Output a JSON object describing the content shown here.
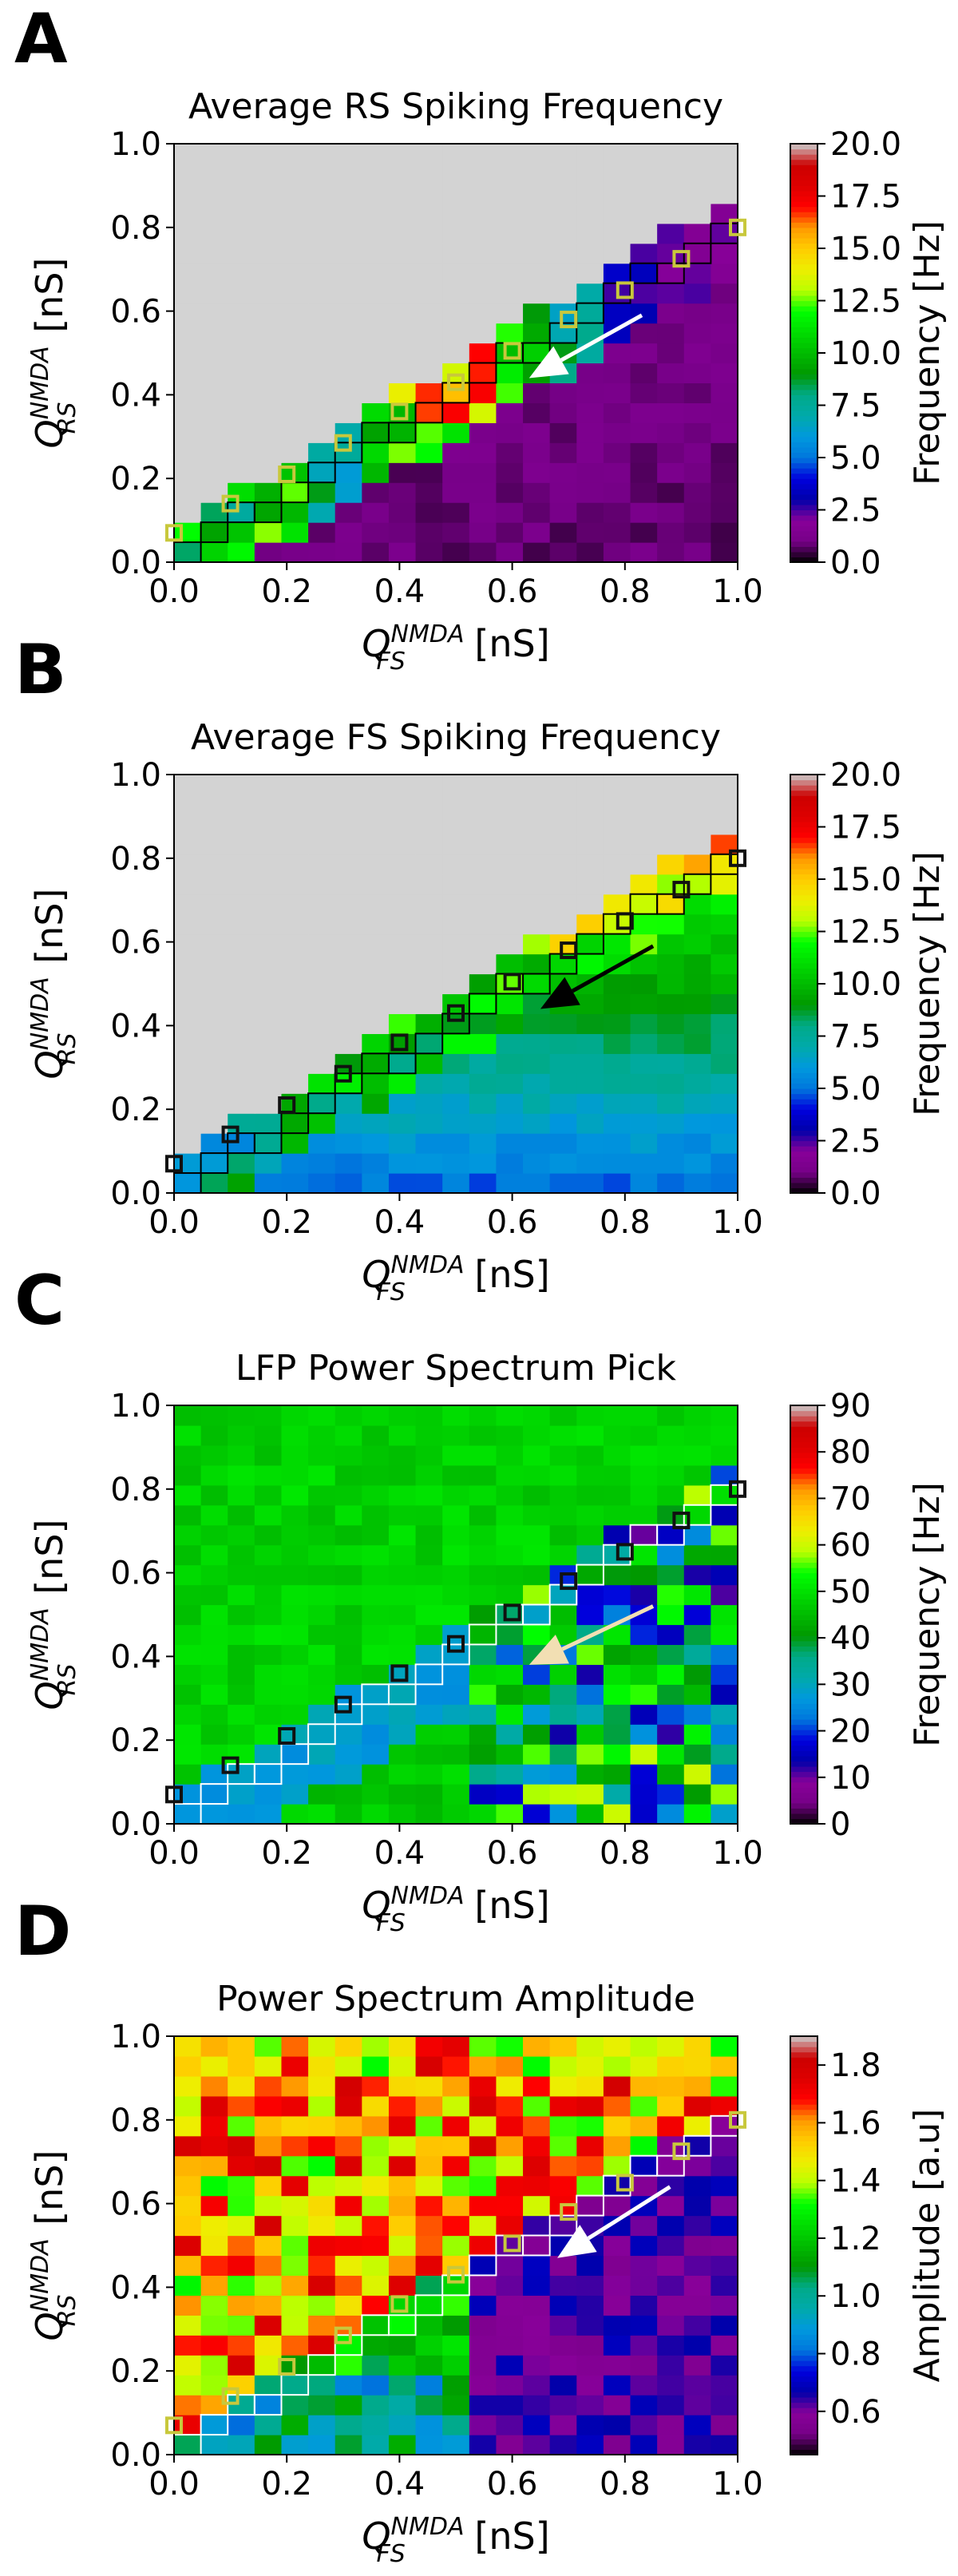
{
  "figure": {
    "type": "multi-panel heatmap figure",
    "x_axis": {
      "base": "Q",
      "superscript": "NMDA",
      "subscript": "FS",
      "unit": "[nS]"
    },
    "y_axis": {
      "base": "Q",
      "superscript": "NMDA",
      "subscript": "RS",
      "unit": "[nS]"
    },
    "ticks": [
      "0.0",
      "0.2",
      "0.4",
      "0.6",
      "0.8",
      "1.0"
    ]
  },
  "chart_data": [
    {
      "panel_label": "A",
      "type": "heatmap",
      "title": "Average RS Spiking Frequency",
      "xlabel": "Q_FS^NMDA [nS]",
      "ylabel": "Q_RS^NMDA [nS]",
      "xlim": [
        0,
        1
      ],
      "ylim": [
        0,
        1
      ],
      "grid_size": 21,
      "masked_region": "upper-left triangle (no data, gray)",
      "colorbar": {
        "label": "Frequency [Hz]",
        "min": 0,
        "max": 20,
        "ticks": [
          "0.0",
          "2.5",
          "5.0",
          "7.5",
          "10.0",
          "12.5",
          "15.0",
          "17.5",
          "20.0"
        ],
        "cmap": "nipy_spectral"
      },
      "heat_model": {
        "kind": "bg_edge",
        "bg_base": 0.5,
        "bg_gradient": 0.5,
        "edge_values": [
          12,
          13,
          9,
          15,
          18,
          13,
          9,
          4,
          2.5
        ],
        "edge_width": 0.12
      },
      "marker_color": "#c8c83c",
      "markers": [
        [
          0,
          0.07
        ],
        [
          0.1,
          0.14
        ],
        [
          0.2,
          0.21
        ],
        [
          0.3,
          0.285
        ],
        [
          0.4,
          0.36
        ],
        [
          0.5,
          0.43
        ],
        [
          0.6,
          0.505
        ],
        [
          0.7,
          0.58
        ],
        [
          0.8,
          0.65
        ],
        [
          0.9,
          0.725
        ],
        [
          1.0,
          0.8
        ]
      ],
      "arrow": {
        "color": "#ffffff",
        "from": [
          0.83,
          0.59
        ],
        "to": [
          0.63,
          0.44
        ]
      }
    },
    {
      "panel_label": "B",
      "type": "heatmap",
      "title": "Average FS Spiking Frequency",
      "xlabel": "Q_FS^NMDA [nS]",
      "ylabel": "Q_RS^NMDA [nS]",
      "xlim": [
        0,
        1
      ],
      "ylim": [
        0,
        1
      ],
      "grid_size": 21,
      "masked_region": "upper-left triangle (no data, gray)",
      "colorbar": {
        "label": "Frequency [Hz]",
        "min": 0,
        "max": 20,
        "ticks": [
          "0.0",
          "2.5",
          "5.0",
          "7.5",
          "10.0",
          "12.5",
          "15.0",
          "17.5",
          "20.0"
        ],
        "cmap": "nipy_spectral"
      },
      "heat_model": {
        "kind": "linear",
        "base": 4.5,
        "by": 9,
        "edge_boost": 5
      },
      "marker_color": "#111111",
      "markers": [
        [
          0,
          0.07
        ],
        [
          0.1,
          0.14
        ],
        [
          0.2,
          0.21
        ],
        [
          0.3,
          0.285
        ],
        [
          0.4,
          0.36
        ],
        [
          0.5,
          0.43
        ],
        [
          0.6,
          0.505
        ],
        [
          0.7,
          0.58
        ],
        [
          0.8,
          0.65
        ],
        [
          0.9,
          0.725
        ],
        [
          1.0,
          0.8
        ]
      ],
      "arrow": {
        "color": "#000000",
        "from": [
          0.85,
          0.59
        ],
        "to": [
          0.65,
          0.44
        ]
      }
    },
    {
      "panel_label": "C",
      "type": "heatmap",
      "title": "LFP Power Spectrum Pick",
      "xlabel": "Q_FS^NMDA [nS]",
      "ylabel": "Q_RS^NMDA [nS]",
      "xlim": [
        0,
        1
      ],
      "ylim": [
        0,
        1
      ],
      "grid_size": 21,
      "colorbar": {
        "label": "Frequency [Hz]",
        "min": 0,
        "max": 90,
        "ticks": [
          "0",
          "10",
          "20",
          "30",
          "40",
          "50",
          "60",
          "70",
          "80",
          "90"
        ],
        "cmap": "nipy_spectral"
      },
      "heat_model": {
        "kind": "lfp",
        "upper_value": 45,
        "below_value": 25,
        "green_region_value": 44,
        "right_region_value": 35,
        "right_region_spread": 25
      },
      "marker_color": "#111111",
      "markers": [
        [
          0,
          0.07
        ],
        [
          0.1,
          0.14
        ],
        [
          0.2,
          0.21
        ],
        [
          0.3,
          0.285
        ],
        [
          0.4,
          0.36
        ],
        [
          0.5,
          0.43
        ],
        [
          0.6,
          0.505
        ],
        [
          0.7,
          0.58
        ],
        [
          0.8,
          0.65
        ],
        [
          0.9,
          0.725
        ],
        [
          1.0,
          0.8
        ]
      ],
      "arrow": {
        "color": "#f2dfb3",
        "from": [
          0.85,
          0.52
        ],
        "to": [
          0.63,
          0.38
        ]
      }
    },
    {
      "panel_label": "D",
      "type": "heatmap",
      "title": "Power Spectrum Amplitude",
      "xlabel": "Q_FS^NMDA [nS]",
      "ylabel": "Q_RS^NMDA [nS]",
      "xlim": [
        0,
        1
      ],
      "ylim": [
        0,
        1
      ],
      "grid_size": 21,
      "colorbar": {
        "label": "Amplitude [a.u]",
        "min": 0.45,
        "max": 1.9,
        "ticks": [
          "0.6",
          "0.8",
          "1.0",
          "1.2",
          "1.4",
          "1.6",
          "1.8"
        ],
        "cmap": "nipy_spectral"
      },
      "heat_model": {
        "kind": "amplitude",
        "upper_value": 1.8,
        "left_low_value": 1.05,
        "low_band_value": 0.8,
        "right_value": 0.55
      },
      "marker_color": "#c8c83c",
      "markers": [
        [
          0,
          0.07
        ],
        [
          0.1,
          0.14
        ],
        [
          0.2,
          0.21
        ],
        [
          0.3,
          0.285
        ],
        [
          0.4,
          0.36
        ],
        [
          0.5,
          0.43
        ],
        [
          0.6,
          0.505
        ],
        [
          0.7,
          0.58
        ],
        [
          0.8,
          0.65
        ],
        [
          0.9,
          0.725
        ],
        [
          1.0,
          0.8
        ]
      ],
      "arrow": {
        "color": "#ffffff",
        "from": [
          0.88,
          0.64
        ],
        "to": [
          0.68,
          0.47
        ]
      }
    }
  ]
}
